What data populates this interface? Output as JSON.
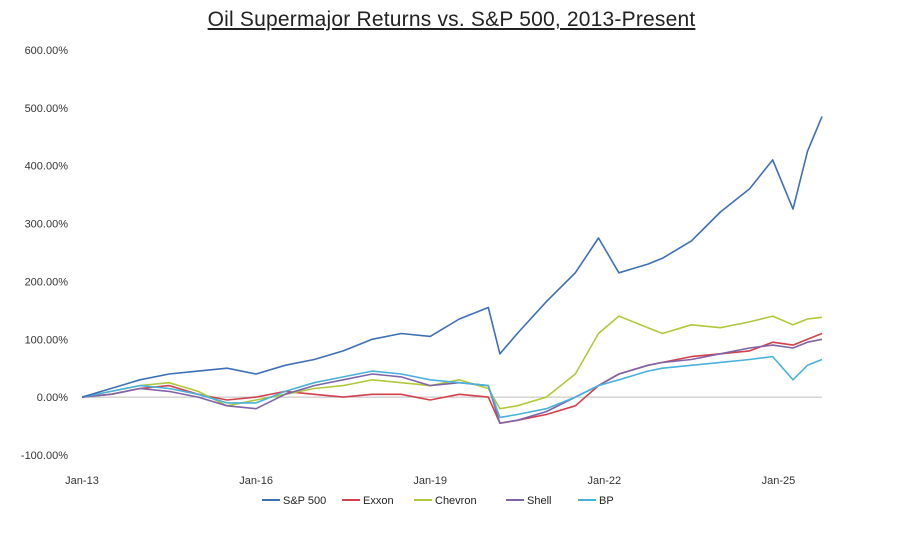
{
  "chart_data": {
    "type": "line",
    "title": "Oil Supermajor Returns vs. S&P 500, 2013-Present",
    "xlabel": "",
    "ylabel": "",
    "y_ticks": [
      "600.00%",
      "500.00%",
      "400.00%",
      "300.00%",
      "200.00%",
      "100.00%",
      "0.00%",
      "-100.00%"
    ],
    "y_tick_values": [
      600,
      500,
      400,
      300,
      200,
      100,
      0,
      -100
    ],
    "ylim": [
      -100,
      600
    ],
    "x_ticks": [
      "Jan-13",
      "Jan-16",
      "Jan-19",
      "Jan-22",
      "Jan-25"
    ],
    "x_tick_values": [
      2013.0,
      2016.0,
      2019.0,
      2022.0,
      2025.0
    ],
    "xlim": [
      2013.0,
      2025.75
    ],
    "grid": false,
    "legend_position": "bottom",
    "x": [
      2013.0,
      2013.5,
      2014.0,
      2014.5,
      2015.0,
      2015.5,
      2016.0,
      2016.5,
      2017.0,
      2017.5,
      2018.0,
      2018.5,
      2019.0,
      2019.5,
      2020.0,
      2020.2,
      2020.5,
      2021.0,
      2021.5,
      2021.9,
      2022.25,
      2022.75,
      2023.0,
      2023.5,
      2024.0,
      2024.5,
      2024.9,
      2025.25,
      2025.5,
      2025.75
    ],
    "series": [
      {
        "name": "S&P 500",
        "color": "#3d6fb7",
        "values": [
          0,
          15,
          30,
          40,
          45,
          50,
          40,
          55,
          65,
          80,
          100,
          110,
          105,
          135,
          155,
          75,
          110,
          165,
          215,
          275,
          215,
          230,
          240,
          270,
          320,
          360,
          410,
          325,
          425,
          485
        ]
      },
      {
        "name": "Exxon",
        "color": "#d2404a",
        "values": [
          0,
          5,
          15,
          20,
          5,
          -5,
          0,
          10,
          5,
          0,
          5,
          5,
          -5,
          5,
          0,
          -45,
          -40,
          -30,
          -15,
          20,
          40,
          55,
          60,
          70,
          75,
          80,
          95,
          90,
          100,
          110
        ]
      },
      {
        "name": "Chevron",
        "color": "#b1c83a",
        "values": [
          0,
          10,
          20,
          25,
          10,
          -15,
          -5,
          5,
          15,
          20,
          30,
          25,
          20,
          30,
          15,
          -20,
          -15,
          0,
          40,
          110,
          140,
          120,
          110,
          125,
          120,
          130,
          140,
          125,
          135,
          138
        ]
      },
      {
        "name": "Shell",
        "color": "#8064a8",
        "values": [
          0,
          5,
          15,
          10,
          0,
          -15,
          -20,
          5,
          20,
          30,
          40,
          35,
          20,
          25,
          20,
          -45,
          -40,
          -25,
          0,
          20,
          40,
          55,
          60,
          65,
          75,
          85,
          90,
          85,
          95,
          100
        ]
      },
      {
        "name": "BP",
        "color": "#48b2dc",
        "values": [
          0,
          10,
          20,
          15,
          5,
          -10,
          -10,
          10,
          25,
          35,
          45,
          40,
          30,
          25,
          20,
          -35,
          -30,
          -20,
          0,
          20,
          30,
          45,
          50,
          55,
          60,
          65,
          70,
          30,
          55,
          65
        ]
      }
    ]
  }
}
